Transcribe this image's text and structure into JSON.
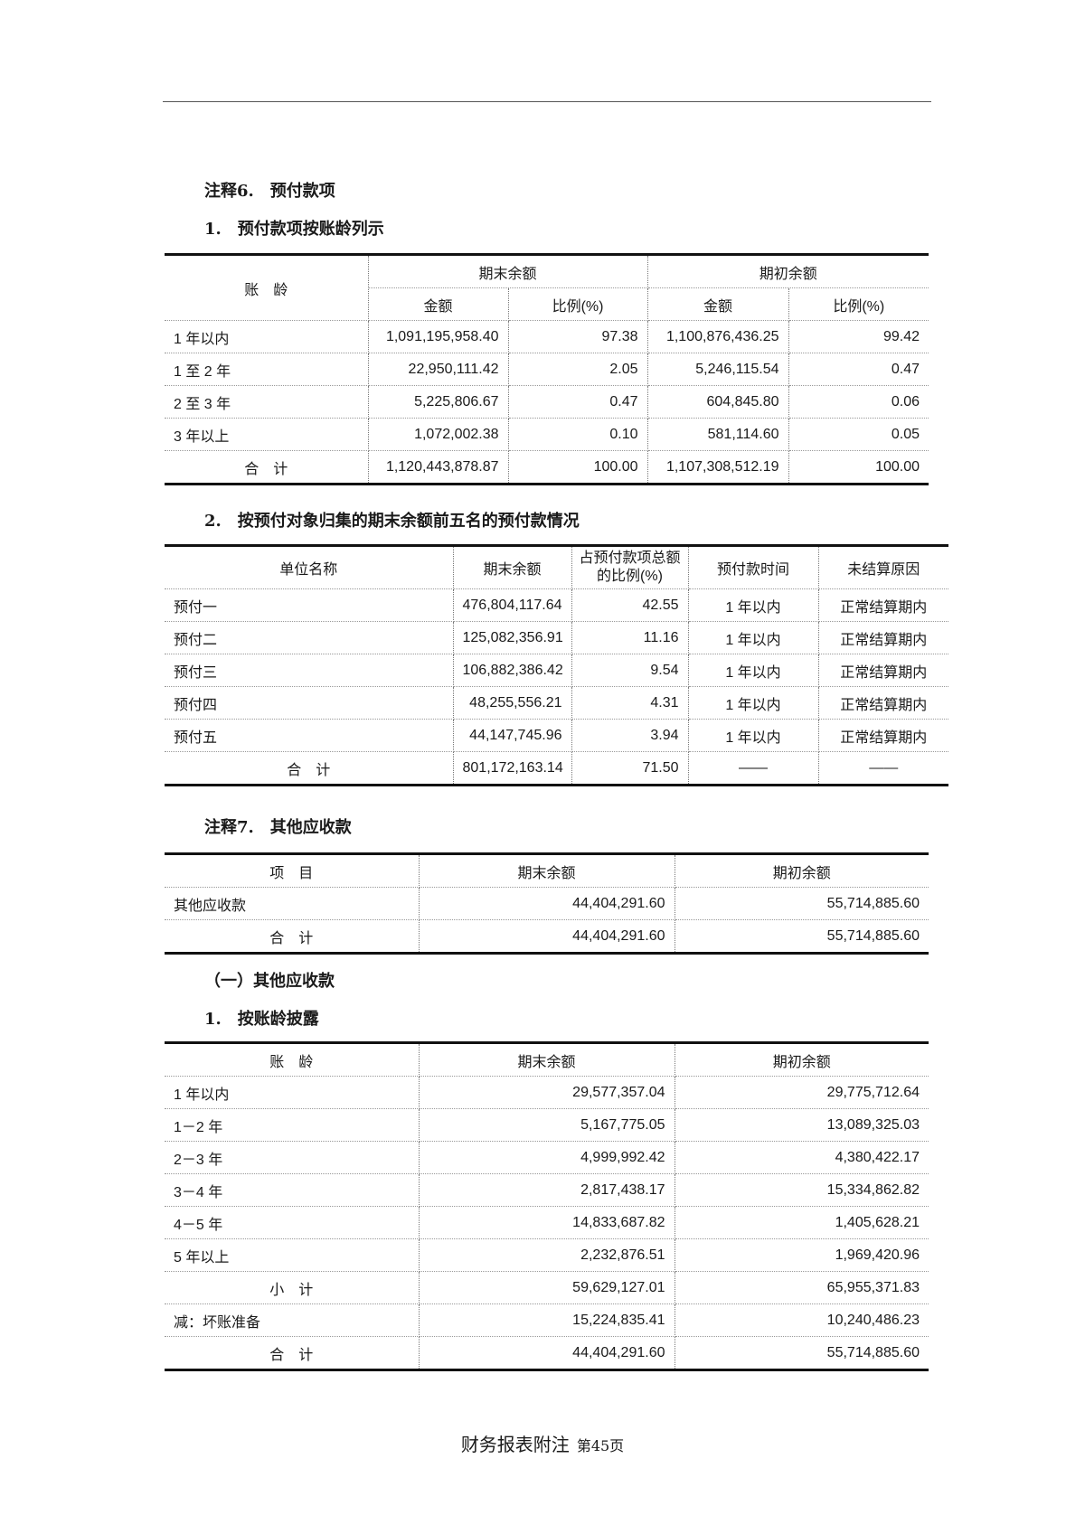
{
  "note6": {
    "title": "注释6.　预付款项",
    "sub1": "1.　预付款项按账龄列示",
    "table1": {
      "col_age": "账　龄",
      "col_end": "期末余额",
      "col_begin": "期初余额",
      "col_amount": "金额",
      "col_ratio": "比例(%)",
      "rows": [
        {
          "age": "1 年以内",
          "end_amount": "1,091,195,958.40",
          "end_ratio": "97.38",
          "begin_amount": "1,100,876,436.25",
          "begin_ratio": "99.42"
        },
        {
          "age": "1 至 2 年",
          "end_amount": "22,950,111.42",
          "end_ratio": "2.05",
          "begin_amount": "5,246,115.54",
          "begin_ratio": "0.47"
        },
        {
          "age": "2 至 3 年",
          "end_amount": "5,225,806.67",
          "end_ratio": "0.47",
          "begin_amount": "604,845.80",
          "begin_ratio": "0.06"
        },
        {
          "age": "3 年以上",
          "end_amount": "1,072,002.38",
          "end_ratio": "0.10",
          "begin_amount": "581,114.60",
          "begin_ratio": "0.05"
        },
        {
          "age": "合　计",
          "end_amount": "1,120,443,878.87",
          "end_ratio": "100.00",
          "begin_amount": "1,107,308,512.19",
          "begin_ratio": "100.00"
        }
      ]
    },
    "sub2": "2.　按预付对象归集的期末余额前五名的预付款情况",
    "table2": {
      "headers": [
        "单位名称",
        "期末余额",
        "占预付款项总额的比例(%)",
        "预付款时间",
        "未结算原因"
      ],
      "rows": [
        [
          "预付一",
          "476,804,117.64",
          "42.55",
          "1 年以内",
          "正常结算期内"
        ],
        [
          "预付二",
          "125,082,356.91",
          "11.16",
          "1 年以内",
          "正常结算期内"
        ],
        [
          "预付三",
          "106,882,386.42",
          "9.54",
          "1 年以内",
          "正常结算期内"
        ],
        [
          "预付四",
          "48,255,556.21",
          "4.31",
          "1 年以内",
          "正常结算期内"
        ],
        [
          "预付五",
          "44,147,745.96",
          "3.94",
          "1 年以内",
          "正常结算期内"
        ],
        [
          "合　计",
          "801,172,163.14",
          "71.50",
          "——",
          "——"
        ]
      ]
    }
  },
  "note7": {
    "title": "注释7.　其他应收款",
    "table3": {
      "headers": [
        "项　目",
        "期末余额",
        "期初余额"
      ],
      "rows": [
        [
          "其他应收款",
          "44,404,291.60",
          "55,714,885.60"
        ],
        [
          "合　计",
          "44,404,291.60",
          "55,714,885.60"
        ]
      ]
    },
    "sec1": "（一）其他应收款",
    "sub1": "1.　按账龄披露",
    "table4": {
      "headers": [
        "账　龄",
        "期末余额",
        "期初余额"
      ],
      "rows": [
        [
          "1 年以内",
          "29,577,357.04",
          "29,775,712.64"
        ],
        [
          "1－2 年",
          "5,167,775.05",
          "13,089,325.03"
        ],
        [
          "2－3 年",
          "4,999,992.42",
          "4,380,422.17"
        ],
        [
          "3－4 年",
          "2,817,438.17",
          "15,334,862.82"
        ],
        [
          "4－5 年",
          "14,833,687.82",
          "1,405,628.21"
        ],
        [
          "5 年以上",
          "2,232,876.51",
          "1,969,420.96"
        ],
        [
          "小　计",
          "59,629,127.01",
          "65,955,371.83"
        ],
        [
          "减：坏账准备",
          "15,224,835.41",
          "10,240,486.23"
        ],
        [
          "合　计",
          "44,404,291.60",
          "55,714,885.60"
        ]
      ]
    }
  },
  "footer": {
    "title": "财务报表附注",
    "page": "第45页"
  }
}
